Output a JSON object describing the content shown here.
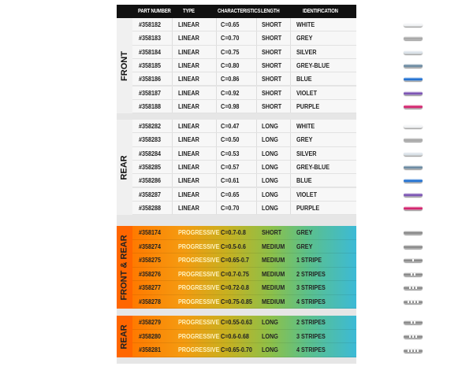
{
  "header": {
    "part_number": "PART NUMBER",
    "type": "TYPE",
    "characteristics": "CHARACTERISTICS",
    "length": "LENGTH",
    "identification": "IDENTIFICATION"
  },
  "sections": [
    {
      "label": "FRONT",
      "style": "linear",
      "rows": [
        {
          "part": "#358182",
          "type": "LINEAR",
          "char": "C=0.65",
          "length": "SHORT",
          "ident": "WHITE",
          "color": "#f2f4f6",
          "stripes": 0
        },
        {
          "part": "#358183",
          "type": "LINEAR",
          "char": "C=0.70",
          "length": "SHORT",
          "ident": "GREY",
          "color": "#a8a8a8",
          "stripes": 0
        },
        {
          "part": "#358184",
          "type": "LINEAR",
          "char": "C=0.75",
          "length": "SHORT",
          "ident": "SILVER",
          "color": "#dbe3ea",
          "stripes": 0
        },
        {
          "part": "#358185",
          "type": "LINEAR",
          "char": "C=0.80",
          "length": "SHORT",
          "ident": "GREY-BLUE",
          "color": "#6a8aa2",
          "stripes": 0
        },
        {
          "part": "#358186",
          "type": "LINEAR",
          "char": "C=0.86",
          "length": "SHORT",
          "ident": "BLUE",
          "color": "#1f70d2",
          "stripes": 0
        },
        {
          "part": "#358187",
          "type": "LINEAR",
          "char": "C=0.92",
          "length": "SHORT",
          "ident": "VIOLET",
          "color": "#7b52b4",
          "stripes": 0
        },
        {
          "part": "#358188",
          "type": "LINEAR",
          "char": "C=0.98",
          "length": "SHORT",
          "ident": "PURPLE",
          "color": "#d4206c",
          "stripes": 0
        }
      ]
    },
    {
      "label": "REAR",
      "style": "linear",
      "rows": [
        {
          "part": "#358282",
          "type": "LINEAR",
          "char": "C=0.47",
          "length": "LONG",
          "ident": "WHITE",
          "color": "#f2f4f6",
          "stripes": 0
        },
        {
          "part": "#358283",
          "type": "LINEAR",
          "char": "C=0.50",
          "length": "LONG",
          "ident": "GREY",
          "color": "#a8a8a8",
          "stripes": 0
        },
        {
          "part": "#358284",
          "type": "LINEAR",
          "char": "C=0.53",
          "length": "LONG",
          "ident": "SILVER",
          "color": "#dbe3ea",
          "stripes": 0
        },
        {
          "part": "#358285",
          "type": "LINEAR",
          "char": "C=0.57",
          "length": "LONG",
          "ident": "GREY-BLUE",
          "color": "#6a8aa2",
          "stripes": 0
        },
        {
          "part": "#358286",
          "type": "LINEAR",
          "char": "C=0.61",
          "length": "LONG",
          "ident": "BLUE",
          "color": "#1f70d2",
          "stripes": 0
        },
        {
          "part": "#358287",
          "type": "LINEAR",
          "char": "C=0.65",
          "length": "LONG",
          "ident": "VIOLET",
          "color": "#7b52b4",
          "stripes": 0
        },
        {
          "part": "#358288",
          "type": "LINEAR",
          "char": "C=0.70",
          "length": "LONG",
          "ident": "PURPLE",
          "color": "#d4206c",
          "stripes": 0
        }
      ]
    },
    {
      "label": "FRONT & REAR",
      "style": "progressive",
      "rows": [
        {
          "part": "#358174",
          "type": "PROGRESSIVE",
          "char": "C=0.7-0.8",
          "length": "SHORT",
          "ident": "GREY",
          "color": "#8a8a8a",
          "stripes": 0
        },
        {
          "part": "#358274",
          "type": "PROGRESSIVE",
          "char": "C=0.5-0.6",
          "length": "MEDIUM",
          "ident": "GREY",
          "color": "#8a8a8a",
          "stripes": 0
        },
        {
          "part": "#358275",
          "type": "PROGRESSIVE",
          "char": "C=0.65-0.7",
          "length": "MEDIUM",
          "ident": "1 STRIPE",
          "color": "#8a8a8a",
          "stripes": 1
        },
        {
          "part": "#358276",
          "type": "PROGRESSIVE",
          "char": "C=0.7-0.75",
          "length": "MEDIUM",
          "ident": "2 STRIPES",
          "color": "#8a8a8a",
          "stripes": 2
        },
        {
          "part": "#358277",
          "type": "PROGRESSIVE",
          "char": "C=0.72-0.8",
          "length": "MEDIUM",
          "ident": "3 STRIPES",
          "color": "#8a8a8a",
          "stripes": 3
        },
        {
          "part": "#358278",
          "type": "PROGRESSIVE",
          "char": "C=0.75-0.85",
          "length": "MEDIUM",
          "ident": "4 STRIPES",
          "color": "#8a8a8a",
          "stripes": 4
        }
      ]
    },
    {
      "label": "REAR",
      "style": "progressive",
      "rows": [
        {
          "part": "#358279",
          "type": "PROGRESSIVE",
          "char": "C=0.55-0.63",
          "length": "LONG",
          "ident": "2 STRIPES",
          "color": "#8a8a8a",
          "stripes": 2
        },
        {
          "part": "#358280",
          "type": "PROGRESSIVE",
          "char": "C=0.6-0.68",
          "length": "LONG",
          "ident": "3 STRIPES",
          "color": "#8a8a8a",
          "stripes": 3
        },
        {
          "part": "#358281",
          "type": "PROGRESSIVE",
          "char": "C=0.65-0.70",
          "length": "LONG",
          "ident": "4 STRIPES",
          "color": "#8a8a8a",
          "stripes": 4
        }
      ]
    }
  ]
}
